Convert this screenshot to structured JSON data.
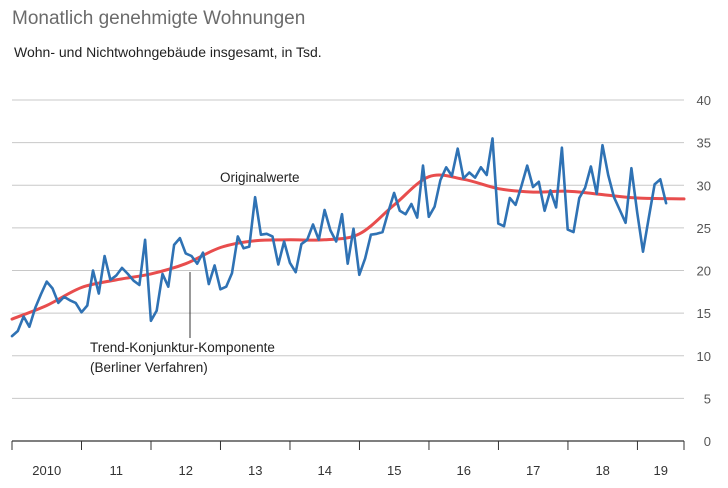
{
  "header": {
    "title": "Monatlich genehmigte Wohnungen",
    "subtitle": "Wohn- und Nichtwohngebäude insgesamt, in Tsd."
  },
  "colors": {
    "original": "#2f72b4",
    "trend": "#e84d4d",
    "grid": "#c8c8c8",
    "axis": "#333333"
  },
  "chart_data": {
    "type": "line",
    "title": "Monatlich genehmigte Wohnungen",
    "subtitle": "Wohn- und Nichtwohngebäude insgesamt, in Tsd.",
    "xlabel": "",
    "ylabel": "",
    "ylim": [
      0,
      40
    ],
    "yticks": [
      "0",
      "5",
      "10",
      "15",
      "20",
      "25",
      "30",
      "35",
      "40"
    ],
    "xlim": [
      2010.0,
      2019.67
    ],
    "x_tick_labels": [
      "2010",
      "11",
      "12",
      "13",
      "14",
      "15",
      "16",
      "17",
      "18",
      "19"
    ],
    "grid": true,
    "annotations": [
      {
        "text": "Originalwerte",
        "series": "Originalwerte"
      },
      {
        "text": "Trend-Konjunktur-Komponente",
        "series": "Trend-Konjunktur-Komponente"
      },
      {
        "text": "(Berliner Verfahren)",
        "series": "Trend-Konjunktur-Komponente"
      }
    ],
    "series": [
      {
        "name": "Originalwerte",
        "color": "#2f72b4",
        "start": 2010.0,
        "step": 0.0833,
        "values": [
          12.3,
          12.9,
          14.6,
          13.4,
          15.6,
          17.2,
          18.7,
          17.9,
          16.2,
          16.9,
          16.5,
          16.2,
          15.1,
          15.9,
          20.0,
          17.3,
          21.7,
          18.9,
          19.4,
          20.3,
          19.6,
          18.8,
          18.3,
          23.6,
          14.1,
          15.3,
          19.6,
          18.1,
          23.0,
          23.8,
          22.0,
          21.7,
          20.8,
          22.1,
          18.4,
          20.6,
          17.8,
          18.1,
          19.7,
          24.0,
          22.6,
          22.8,
          28.6,
          24.2,
          24.3,
          24.0,
          20.7,
          23.4,
          20.9,
          19.8,
          23.1,
          23.6,
          25.4,
          23.6,
          27.1,
          24.7,
          23.4,
          26.6,
          20.8,
          24.9,
          19.5,
          21.4,
          24.2,
          24.3,
          24.5,
          26.9,
          29.1,
          27.0,
          26.6,
          27.8,
          26.2,
          32.3,
          26.3,
          27.5,
          30.6,
          32.1,
          31.1,
          34.3,
          30.8,
          31.5,
          30.9,
          32.1,
          31.2,
          35.5,
          25.5,
          25.2,
          28.5,
          27.7,
          29.9,
          32.3,
          29.8,
          30.4,
          27.0,
          29.4,
          27.4,
          34.4,
          24.8,
          24.5,
          28.5,
          29.7,
          32.2,
          29.0,
          34.7,
          31.2,
          28.6,
          27.1,
          25.6,
          32.0,
          26.8,
          22.2,
          26.2,
          30.1,
          30.7,
          27.9
        ]
      },
      {
        "name": "Trend-Konjunktur-Komponente",
        "color": "#e84d4d",
        "x": [
          2010.0,
          2010.5,
          2011.0,
          2011.5,
          2012.0,
          2012.5,
          2013.0,
          2013.5,
          2014.0,
          2014.5,
          2015.0,
          2015.5,
          2016.0,
          2016.5,
          2017.0,
          2017.5,
          2018.0,
          2018.5,
          2019.0,
          2019.67
        ],
        "values": [
          14.3,
          15.9,
          18.0,
          18.9,
          19.6,
          20.8,
          22.7,
          23.5,
          23.6,
          23.6,
          24.3,
          27.7,
          31.0,
          30.7,
          29.6,
          29.2,
          29.3,
          28.9,
          28.5,
          28.4
        ]
      }
    ]
  }
}
